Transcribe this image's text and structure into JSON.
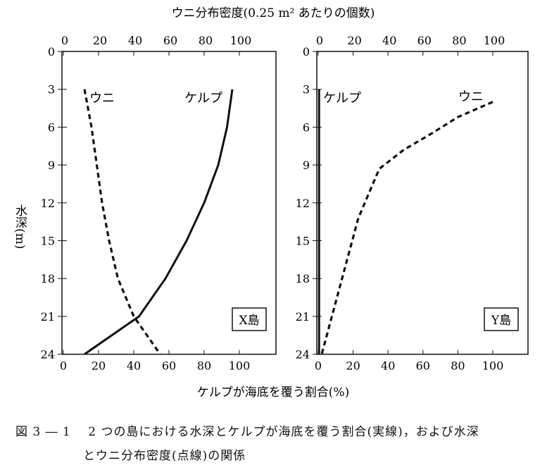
{
  "chart_data": [
    {
      "type": "line",
      "panel": "X島",
      "label": "X島",
      "top_axis_label": "ウニ分布密度(0.25 m² あたりの個数)",
      "bottom_axis_label": "ケルプが海底を覆う割合(%)",
      "ylabel": "水深(m)",
      "x_ticks": [
        0,
        20,
        40,
        60,
        80,
        100
      ],
      "xlim": [
        0,
        120
      ],
      "y_ticks": [
        0,
        3,
        6,
        9,
        12,
        15,
        18,
        21,
        24
      ],
      "ylim": [
        0,
        24
      ],
      "series": [
        {
          "name": "ケルプ",
          "style": "solid",
          "points": [
            [
              96,
              3
            ],
            [
              93,
              6
            ],
            [
              88,
              9
            ],
            [
              80,
              12
            ],
            [
              70,
              15
            ],
            [
              58,
              18
            ],
            [
              43,
              21
            ],
            [
              12,
              24
            ]
          ]
        },
        {
          "name": "ウニ",
          "style": "dashed",
          "points": [
            [
              12,
              3
            ],
            [
              16,
              6
            ],
            [
              19,
              9
            ],
            [
              22,
              12
            ],
            [
              26,
              15
            ],
            [
              31,
              18
            ],
            [
              40,
              21
            ],
            [
              55,
              24
            ]
          ]
        }
      ]
    },
    {
      "type": "line",
      "panel": "Y島",
      "label": "Y島",
      "x_ticks": [
        0,
        20,
        40,
        60,
        80,
        100
      ],
      "xlim": [
        0,
        120
      ],
      "y_ticks": [
        0,
        3,
        6,
        9,
        12,
        15,
        18,
        21,
        24
      ],
      "ylim": [
        0,
        24
      ],
      "series": [
        {
          "name": "ケルプ",
          "style": "solid",
          "points": [
            [
              0.5,
              3
            ],
            [
              0.5,
              24
            ]
          ]
        },
        {
          "name": "ウニ",
          "style": "dashed",
          "points": [
            [
              100,
              4
            ],
            [
              80,
              5.2
            ],
            [
              65,
              6.5
            ],
            [
              49,
              7.8
            ],
            [
              35,
              9.3
            ],
            [
              23,
              13.2
            ],
            [
              2,
              24
            ]
          ]
        }
      ]
    }
  ],
  "caption": {
    "line1": "図 3 ― 1　 2 つの島における水深とケルプが海底を覆う割合(実線)，および水深",
    "line2": "とウニ分布密度(点線)の関係"
  }
}
